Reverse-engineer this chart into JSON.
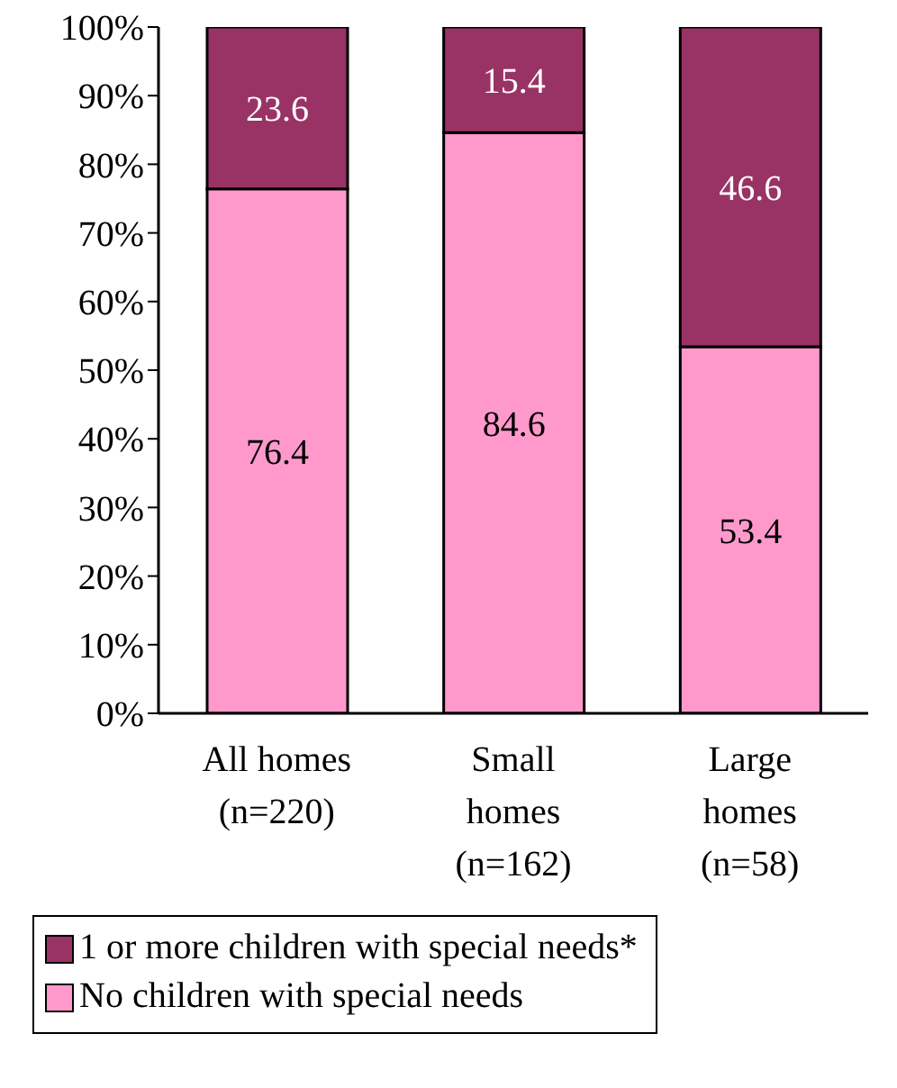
{
  "chart_data": {
    "type": "bar",
    "stacked": true,
    "categories": [
      "All homes\n(n=220)",
      "Small\nhomes\n(n=162)",
      "Large\nhomes\n(n=58)"
    ],
    "series": [
      {
        "name": "No children with special needs",
        "color": "#ff99cc",
        "values": [
          76.4,
          84.6,
          53.4
        ]
      },
      {
        "name": "1 or more children with special needs*",
        "color": "#993366",
        "values": [
          23.6,
          15.4,
          46.6
        ]
      }
    ],
    "ylim": [
      0,
      100
    ],
    "yticks": [
      {
        "value": 0,
        "label": "0%"
      },
      {
        "value": 10,
        "label": "10%"
      },
      {
        "value": 20,
        "label": "20%"
      },
      {
        "value": 30,
        "label": "30%"
      },
      {
        "value": 40,
        "label": "40%"
      },
      {
        "value": 50,
        "label": "50%"
      },
      {
        "value": 60,
        "label": "60%"
      },
      {
        "value": 70,
        "label": "70%"
      },
      {
        "value": 80,
        "label": "80%"
      },
      {
        "value": 90,
        "label": "90%"
      },
      {
        "value": 100,
        "label": "100%"
      }
    ],
    "data_labels": true,
    "grid": false,
    "legend": "bottom"
  }
}
